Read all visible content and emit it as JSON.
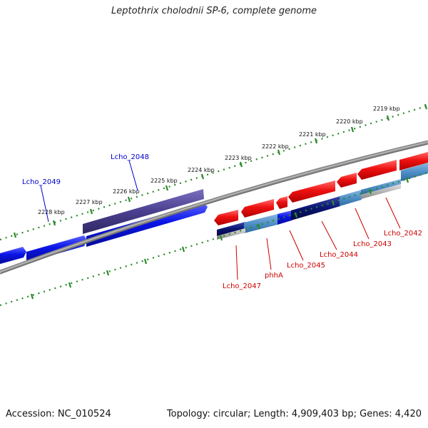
{
  "title": "Leptothrix cholodnii SP-6, complete genome",
  "accession": "Accession: NC_010524",
  "summary": "Topology: circular; Length: 4,909,403 bp; Genes: 4,420",
  "colors": {
    "backbone": "#8a8a8a",
    "tick": "#2a8a2a",
    "plus_strand": "#0a14e6",
    "plus_strand_dark": "#4a3f8f",
    "minus_strand": "#ee1111",
    "minus_strand_dark": "#0a1470",
    "minus_strand_light": "#4f8fc8",
    "label_plus": "#0000cc",
    "label_minus": "#cc0000"
  },
  "upper_kbp_labels": [
    "2219 kbp",
    "2220 kbp",
    "2221 kbp",
    "2222 kbp",
    "2223 kbp",
    "2224 kbp",
    "2225 kbp",
    "2226 kbp",
    "2227 kbp",
    "2228 kbp"
  ],
  "plus_gene_labels": [
    "Lcho_2048",
    "Lcho_2049"
  ],
  "minus_gene_labels": [
    "Lcho_2042",
    "Lcho_2043",
    "Lcho_2044",
    "Lcho_2045",
    "phhA",
    "Lcho_2047"
  ]
}
